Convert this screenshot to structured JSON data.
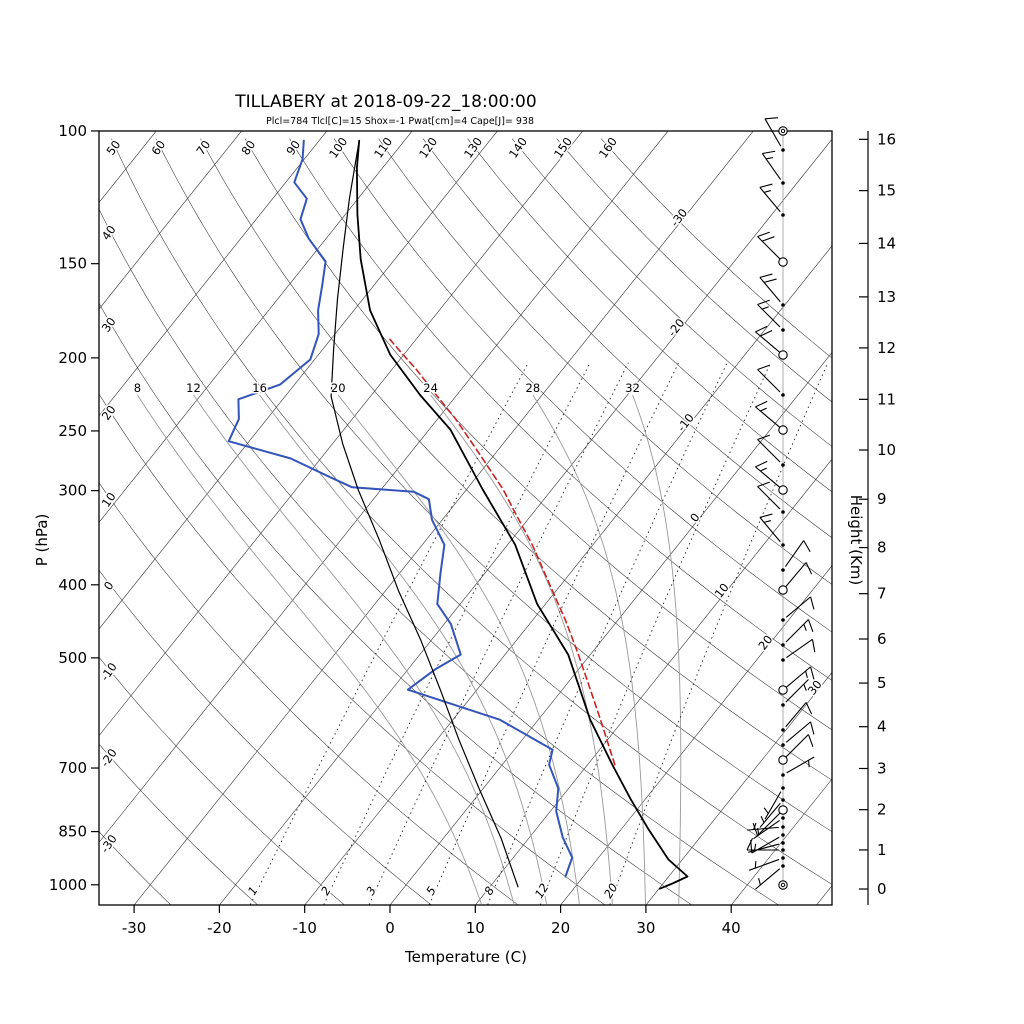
{
  "header": {
    "title": "TILLABERY at 2018-09-22_18:00:00",
    "stats": "Plcl=784 Tlcl[C]=15 Shox=-1 Pwat[cm]=4 Cape[J]= 938"
  },
  "axes": {
    "xlabel": "Temperature (C)",
    "ylabel_left": "P (hPa)",
    "ylabel_right": "Height (Km)",
    "pressure_ticks": [
      100,
      150,
      200,
      250,
      300,
      400,
      500,
      700,
      850,
      1000
    ],
    "temperature_ticks": [
      -30,
      -20,
      -10,
      0,
      10,
      20,
      30,
      40
    ],
    "height_ticks_km": [
      0,
      1,
      2,
      3,
      4,
      5,
      6,
      7,
      8,
      9,
      10,
      11,
      12,
      13,
      14,
      15,
      16
    ],
    "height_tick_pressures": [
      1013,
      899,
      795,
      701,
      617,
      540,
      472,
      411,
      357,
      308,
      265,
      227,
      194,
      166,
      141,
      120,
      102.6
    ]
  },
  "chart_data": {
    "type": "skewt-logp",
    "station": "TILLABERY",
    "datetime": "2018-09-22_18:00:00",
    "indices": {
      "Plcl": 784,
      "Tlcl_C": 15,
      "Shox": -1,
      "Pwat_cm": 4,
      "Cape_J": 938
    },
    "colors": {
      "dewpoint": "#3355bb",
      "temperature": "#000000",
      "wet_bulb": "#000000",
      "parcel": "#cc2222",
      "stats_text": "#a93c26",
      "grid": "#333333",
      "moist_adiabat": "#999999"
    },
    "grid": {
      "isotherms_C": {
        "min": -110,
        "max": 50,
        "step": 10
      },
      "isotherm_inline_labels": [
        [
          -30,
          220
        ],
        [
          -20,
          330
        ],
        [
          -10,
          425
        ],
        [
          0,
          520
        ],
        [
          10,
          593
        ],
        [
          20,
          645
        ],
        [
          30,
          690
        ]
      ],
      "dry_adiabats_C": {
        "min": -30,
        "max": 160,
        "step": 10
      },
      "dry_adiabat_top_labels": [
        50,
        60,
        70,
        80,
        90,
        100,
        110,
        120,
        130,
        140,
        150,
        160
      ],
      "dry_adiabat_left_labels": [
        40,
        30,
        20,
        10,
        0,
        -10,
        -20,
        -30
      ],
      "moist_adiabats_C": [
        8,
        12,
        16,
        20,
        24,
        28,
        32
      ],
      "mixing_ratio_g_kg": [
        1,
        2,
        3,
        5,
        8,
        12,
        20
      ]
    },
    "series": [
      {
        "id": "dewpoint",
        "name": "Dew point (blue)",
        "color": "#3355bb",
        "width": 2,
        "points": [
          [
            975,
            17.9
          ],
          [
            920,
            16.9
          ],
          [
            865,
            13.9
          ],
          [
            799,
            10.7
          ],
          [
            745,
            8.8
          ],
          [
            693,
            5.5
          ],
          [
            662,
            4.5
          ],
          [
            604,
            -4.5
          ],
          [
            551,
            -18.1
          ],
          [
            518,
            -16.8
          ],
          [
            495,
            -15.2
          ],
          [
            451,
            -19.2
          ],
          [
            424,
            -22.7
          ],
          [
            386,
            -25.2
          ],
          [
            354,
            -27.4
          ],
          [
            328,
            -31.2
          ],
          [
            308,
            -33.5
          ],
          [
            301,
            -36.0
          ],
          [
            297,
            -43.6
          ],
          [
            288,
            -47.1
          ],
          [
            272,
            -53.5
          ],
          [
            258,
            -62.4
          ],
          [
            241,
            -63.3
          ],
          [
            227,
            -65.2
          ],
          [
            217,
            -61.7
          ],
          [
            201,
            -60.5
          ],
          [
            186,
            -61.9
          ],
          [
            173,
            -64.2
          ],
          [
            160,
            -66.1
          ],
          [
            149,
            -67.9
          ],
          [
            139,
            -72.0
          ],
          [
            131,
            -74.8
          ],
          [
            123,
            -76.0
          ],
          [
            117,
            -79.0
          ],
          [
            109,
            -80.2
          ],
          [
            103,
            -81.8
          ]
        ]
      },
      {
        "id": "temperature",
        "name": "Temperature (black, thick)",
        "color": "#000000",
        "width": 1.8,
        "points": [
          [
            1012,
            30.1
          ],
          [
            996,
            31.1
          ],
          [
            975,
            32.2
          ],
          [
            926,
            28.4
          ],
          [
            844,
            23.2
          ],
          [
            770,
            18.3
          ],
          [
            693,
            12.9
          ],
          [
            604,
            6.1
          ],
          [
            495,
            -2.6
          ],
          [
            424,
            -11.0
          ],
          [
            354,
            -19.1
          ],
          [
            299,
            -28.1
          ],
          [
            249,
            -37.5
          ],
          [
            224,
            -44.3
          ],
          [
            198,
            -51.6
          ],
          [
            173,
            -58.1
          ],
          [
            148,
            -64.0
          ],
          [
            129,
            -68.6
          ],
          [
            112,
            -73.0
          ],
          [
            103,
            -75.3
          ]
        ]
      },
      {
        "id": "wet-bulb",
        "name": "Secondary profile (black, thin)",
        "color": "#000000",
        "width": 1.2,
        "points": [
          [
            1006,
            13.3
          ],
          [
            868,
            6.8
          ],
          [
            745,
            -0.5
          ],
          [
            641,
            -7.5
          ],
          [
            551,
            -14.3
          ],
          [
            473,
            -21.3
          ],
          [
            408,
            -28.4
          ],
          [
            348,
            -35.6
          ],
          [
            299,
            -42.7
          ],
          [
            260,
            -48.8
          ],
          [
            225,
            -54.6
          ],
          [
            195,
            -58.7
          ],
          [
            167,
            -63.0
          ],
          [
            143,
            -67.1
          ],
          [
            123,
            -71.0
          ],
          [
            103,
            -75.3
          ]
        ]
      },
      {
        "id": "parcel",
        "name": "Parcel ascent (red dashed)",
        "color": "#cc2222",
        "width": 1.6,
        "dash": "6 4",
        "points": [
          [
            693,
            13.2
          ],
          [
            604,
            7.3
          ],
          [
            551,
            3.3
          ],
          [
            495,
            -1.4
          ],
          [
            445,
            -6.2
          ],
          [
            400,
            -11.3
          ],
          [
            354,
            -17.1
          ],
          [
            318,
            -22.6
          ],
          [
            299,
            -25.7
          ],
          [
            265,
            -32.5
          ],
          [
            241,
            -37.9
          ],
          [
            224,
            -42.4
          ],
          [
            207,
            -47.2
          ],
          [
            198,
            -50.1
          ],
          [
            188,
            -53.4
          ]
        ]
      }
    ],
    "wind_barbs": [
      {
        "y": 131,
        "mark": "circle",
        "speed_kt": 0
      },
      {
        "y": 150,
        "mark": "dot",
        "dir_deg": -30,
        "speed_kt": 10
      },
      {
        "y": 183,
        "mark": "dot",
        "dir_deg": -35,
        "speed_kt": 15
      },
      {
        "y": 215,
        "mark": "dot",
        "dir_deg": -40,
        "speed_kt": 15
      },
      {
        "y": 262,
        "mark": "circle",
        "dir_deg": -45,
        "speed_kt": 20
      },
      {
        "y": 305,
        "mark": "dot",
        "dir_deg": -40,
        "speed_kt": 20
      },
      {
        "y": 330,
        "mark": "dot",
        "dir_deg": -45,
        "speed_kt": 15
      },
      {
        "y": 355,
        "mark": "circle",
        "dir_deg": -50,
        "speed_kt": 20
      },
      {
        "y": 395,
        "mark": "dot",
        "dir_deg": -45,
        "speed_kt": 10
      },
      {
        "y": 430,
        "mark": "circle",
        "dir_deg": -50,
        "speed_kt": 15
      },
      {
        "y": 465,
        "mark": "dot",
        "dir_deg": -45,
        "speed_kt": 10
      },
      {
        "y": 490,
        "mark": "circle",
        "dir_deg": -50,
        "speed_kt": 15
      },
      {
        "y": 512,
        "mark": "dot",
        "dir_deg": -45,
        "speed_kt": 10
      },
      {
        "y": 545,
        "mark": "dot",
        "dir_deg": -40,
        "speed_kt": 15
      },
      {
        "y": 570,
        "mark": "dot",
        "dir_deg": 35,
        "speed_kt": 10
      },
      {
        "y": 590,
        "mark": "circle",
        "dir_deg": 40,
        "speed_kt": 10
      },
      {
        "y": 620,
        "mark": "dot",
        "dir_deg": 50,
        "speed_kt": 10
      },
      {
        "y": 645,
        "mark": "dot",
        "dir_deg": 45,
        "speed_kt": 15
      },
      {
        "y": 660,
        "mark": "dot",
        "dir_deg": 55,
        "speed_kt": 10
      },
      {
        "y": 690,
        "mark": "circle",
        "dir_deg": 50,
        "speed_kt": 15
      },
      {
        "y": 705,
        "mark": "dot",
        "dir_deg": 45,
        "speed_kt": 5
      },
      {
        "y": 730,
        "mark": "dot",
        "dir_deg": 40,
        "speed_kt": 10
      },
      {
        "y": 745,
        "mark": "dot",
        "dir_deg": 50,
        "speed_kt": 10
      },
      {
        "y": 760,
        "mark": "circle",
        "dir_deg": 45,
        "speed_kt": 10
      },
      {
        "y": 775,
        "mark": "dot",
        "dir_deg": 60,
        "speed_kt": 5
      },
      {
        "y": 788,
        "mark": "dot",
        "dir_deg": 210,
        "speed_kt": 5
      },
      {
        "y": 800,
        "mark": "dot",
        "dir_deg": 220,
        "speed_kt": 5
      },
      {
        "y": 810,
        "mark": "circle",
        "dir_deg": 225,
        "speed_kt": 10
      },
      {
        "y": 818,
        "mark": "dot",
        "dir_deg": 235,
        "speed_kt": 5
      },
      {
        "y": 827,
        "mark": "dot",
        "dir_deg": 265,
        "speed_kt": 5
      },
      {
        "y": 835,
        "mark": "dot",
        "dir_deg": 240,
        "speed_kt": 10
      },
      {
        "y": 843,
        "mark": "dot",
        "dir_deg": 255,
        "speed_kt": 5
      },
      {
        "y": 850,
        "mark": "dot",
        "dir_deg": 270,
        "speed_kt": 10
      },
      {
        "y": 858,
        "mark": "dot",
        "dir_deg": 250,
        "speed_kt": 5
      },
      {
        "y": 866,
        "mark": "dot",
        "dir_deg": 230,
        "speed_kt": 5
      },
      {
        "y": 885,
        "mark": "circle",
        "speed_kt": 0
      }
    ]
  }
}
